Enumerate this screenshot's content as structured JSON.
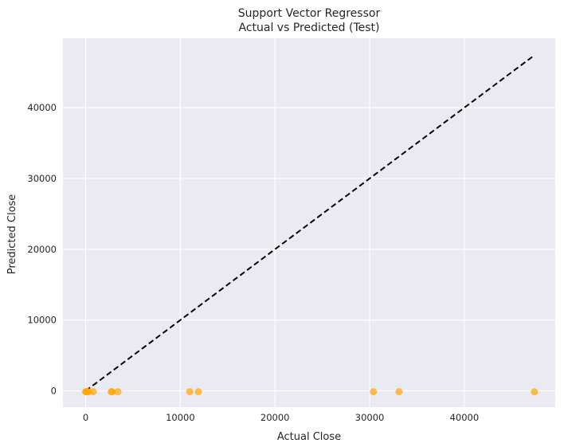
{
  "chart_data": {
    "type": "scatter",
    "title_line1": "Support Vector Regressor",
    "title_line2": "Actual vs Predicted (Test)",
    "xlabel": "Actual Close",
    "ylabel": "Predicted Close",
    "xlim": [
      -2400,
      49600
    ],
    "ylim": [
      -2300,
      49800
    ],
    "xticks": [
      0,
      10000,
      20000,
      30000,
      40000
    ],
    "xtick_labels": [
      "0",
      "10000",
      "20000",
      "30000",
      "40000"
    ],
    "yticks": [
      0,
      10000,
      20000,
      30000,
      40000
    ],
    "ytick_labels": [
      "0",
      "10000",
      "20000",
      "30000",
      "40000"
    ],
    "grid": true,
    "colors": {
      "background": "#eaeaf2",
      "grid": "#ffffff",
      "points": "#ffa500",
      "reference_line": "#000000"
    },
    "series": [
      {
        "marker": "circle",
        "x": [
          0,
          50,
          150,
          300,
          800,
          2700,
          2800,
          3400,
          11000,
          11900,
          30400,
          33100,
          47400
        ],
        "y": [
          -120,
          -120,
          -120,
          -120,
          -120,
          -120,
          -120,
          -120,
          -120,
          -120,
          -120,
          -120,
          -120
        ]
      }
    ],
    "reference_line": {
      "style": "dashed",
      "x": [
        0,
        47400
      ],
      "y": [
        0,
        47400
      ]
    }
  }
}
